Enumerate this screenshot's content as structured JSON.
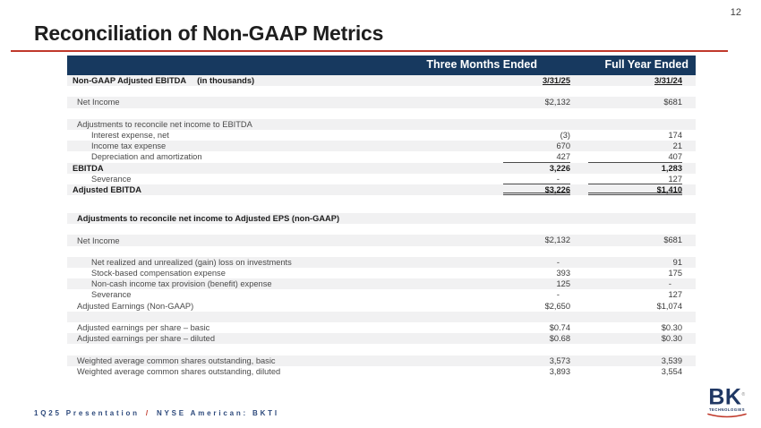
{
  "page": {
    "number": "12"
  },
  "title": "Reconciliation of Non-GAAP Metrics",
  "footer": {
    "left": "1Q25 Presentation",
    "sep": "/",
    "right": "NYSE American: BKTI"
  },
  "logo": {
    "text": "BK",
    "reg": "®",
    "sub": "TECHNOLOGIES"
  },
  "colors": {
    "header_navy": "#17395f",
    "accent_red": "#c0392b",
    "row_shade": "#f1f1f2",
    "logo_navy": "#203864"
  },
  "table": {
    "col_headers": [
      "Three Months Ended",
      "Full Year Ended"
    ],
    "rows": [
      {
        "label": "Non-GAAP Adjusted EBITDA",
        "note": "(in thousands)",
        "bold": true,
        "indent": 0,
        "v1": "3/31/25",
        "v2": "3/31/24",
        "dates": true,
        "shade": true
      },
      {
        "blank": true
      },
      {
        "label": "Net Income",
        "indent": 1,
        "v1": "$2,132",
        "v2": "$681",
        "shade": true
      },
      {
        "blank": true
      },
      {
        "label": "Adjustments to reconcile net income to EBITDA",
        "indent": 1,
        "v1": "",
        "v2": "",
        "shade": true
      },
      {
        "label": "Interest expense, net",
        "indent": 2,
        "v1": "(3)",
        "v2": "174"
      },
      {
        "label": "Income tax expense",
        "indent": 2,
        "v1": "670",
        "v2": "21",
        "shade": true
      },
      {
        "label": "Depreciation and amortization",
        "indent": 2,
        "v1": "427",
        "v2": "407",
        "ul": true
      },
      {
        "label": "EBITDA",
        "bold": true,
        "indent": 0,
        "v1": "3,226",
        "v2": "1,283",
        "shade": true
      },
      {
        "label": "Severance",
        "indent": 2,
        "v1": "-",
        "v2": "127",
        "ul": true
      },
      {
        "label": "Adjusted EBITDA",
        "bold": true,
        "indent": 0,
        "v1": "$3,226",
        "v2": "$1,410",
        "shade": true,
        "dul": true
      },
      {
        "blank": true,
        "h": 10
      },
      {
        "blank": true,
        "h": 10
      },
      {
        "label": "Adjustments to reconcile net income to Adjusted EPS (non-GAAP)",
        "bold": true,
        "indent": 1,
        "v1": "",
        "v2": "",
        "shade": true
      },
      {
        "blank": true
      },
      {
        "label": "Net Income",
        "indent": 1,
        "v1": "$2,132",
        "v2": "$681",
        "shade": true
      },
      {
        "blank": true
      },
      {
        "label": "Net realized and unrealized (gain) loss on investments",
        "indent": 2,
        "v1": "-",
        "v2": "91",
        "shade": true
      },
      {
        "label": "Stock-based compensation expense",
        "indent": 2,
        "v1": "393",
        "v2": "175"
      },
      {
        "label": "Non-cash income tax provision (benefit) expense",
        "indent": 2,
        "v1": "125",
        "v2": "-",
        "shade": true
      },
      {
        "label": "Severance",
        "indent": 2,
        "v1": "-",
        "v2": "127"
      },
      {
        "label": "Adjusted Earnings (Non-GAAP)",
        "indent": 1,
        "v1": "$2,650",
        "v2": "$1,074"
      },
      {
        "blank": true,
        "shade": true
      },
      {
        "label": "Adjusted earnings per share – basic",
        "indent": 1,
        "v1": "$0.74",
        "v2": "$0.30"
      },
      {
        "label": "Adjusted earnings per share – diluted",
        "indent": 1,
        "v1": "$0.68",
        "v2": "$0.30",
        "shade": true
      },
      {
        "blank": true
      },
      {
        "label": "Weighted average common shares outstanding, basic",
        "indent": 1,
        "v1": "3,573",
        "v2": "3,539",
        "shade": true
      },
      {
        "label": "Weighted average common shares outstanding, diluted",
        "indent": 1,
        "v1": "3,893",
        "v2": "3,554"
      }
    ]
  }
}
